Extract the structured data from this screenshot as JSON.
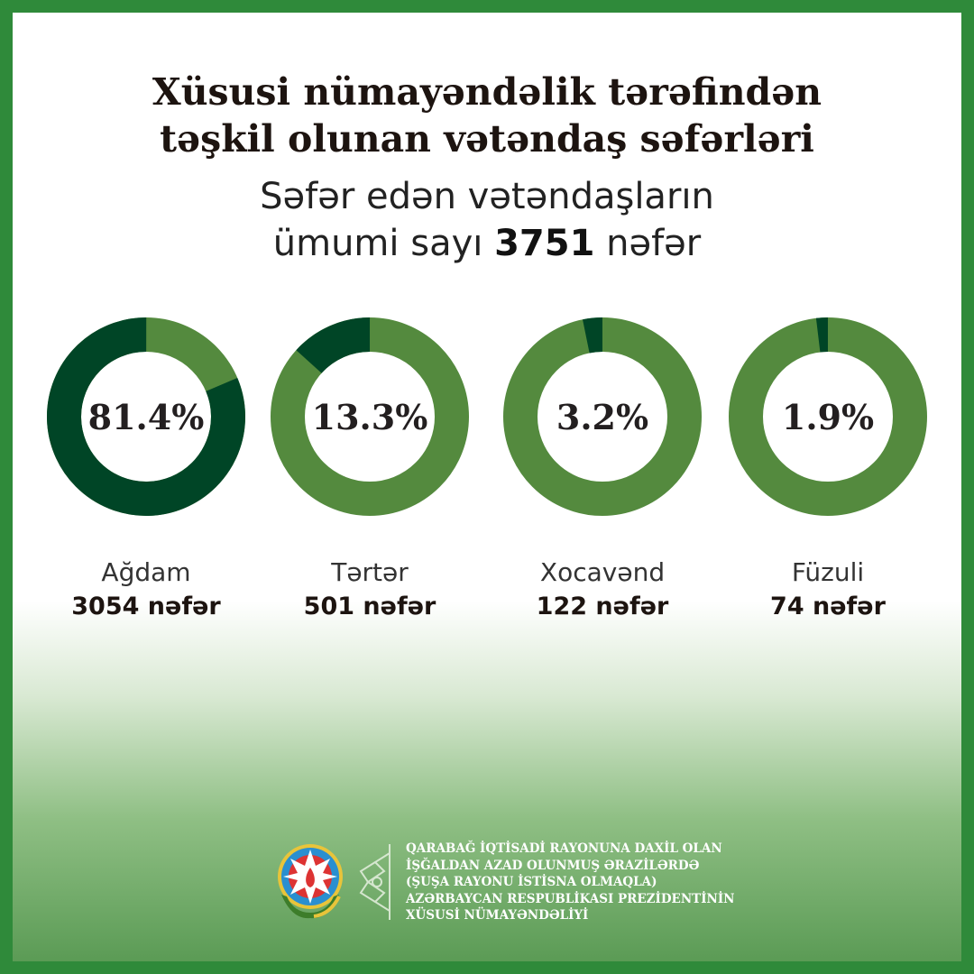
{
  "header": {
    "title_line1": "Xüsusi nümayəndəlik tərəfindən",
    "title_line2": "təşkil olunan vətəndaş səfərləri",
    "subtitle_line1": "Səfər edən vətəndaşların",
    "subtitle_pre": "ümumi sayı ",
    "subtitle_total": "3751",
    "subtitle_post": " nəfər"
  },
  "chart_data": {
    "type": "pie",
    "variant": "donut",
    "total": 3751,
    "colors": {
      "highlight": "#004526",
      "rest": "#548a3e"
    },
    "categories": [
      "Ağdam",
      "Tərtər",
      "Xocavənd",
      "Füzuli"
    ],
    "values": [
      81.4,
      13.3,
      3.2,
      1.9
    ],
    "percent_labels": [
      "81.4%",
      "13.3%",
      "3.2%",
      "1.9%"
    ],
    "count_labels": [
      "3054 nəfər",
      "501 nəfər",
      "122 nəfər",
      "74 nəfər"
    ]
  },
  "footer": {
    "lines": [
      "QARABAĞ İQTİSADİ RAYONUNA DAXİL OLAN",
      "İŞĞALDAN AZAD OLUNMUŞ ƏRAZİLƏRDƏ",
      "(ŞUŞA RAYONU İSTİSNA OLMAQLA)",
      "AZƏRBAYCAN RESPUBLİKASI PREZİDENTİNİN",
      "XÜSUSİ NÜMAYƏNDƏLİYİ"
    ],
    "emblem_icon": "azerbaijan-emblem",
    "ornament_icon": "ornament"
  },
  "colors": {
    "border": "#2f8a3a"
  }
}
